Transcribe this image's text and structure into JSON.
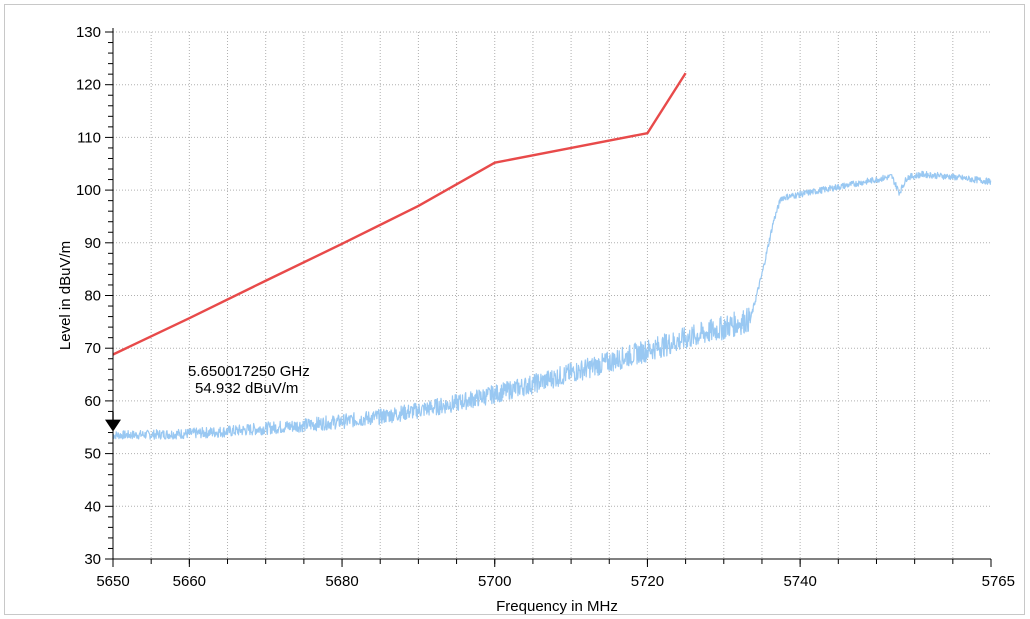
{
  "chart_data": {
    "type": "line",
    "title": "",
    "xlabel": "Frequency in MHz",
    "ylabel": "Level in dBuV/m",
    "xlim": [
      5650,
      5765
    ],
    "ylim": [
      30,
      130
    ],
    "x_ticks": [
      5650,
      5660,
      5680,
      5700,
      5720,
      5740,
      5765
    ],
    "y_ticks": [
      30,
      40,
      50,
      60,
      70,
      80,
      90,
      100,
      110,
      120,
      130
    ],
    "grid": true,
    "series": [
      {
        "color": "#e84a4a",
        "x": [
          5650,
          5660,
          5670,
          5680,
          5690,
          5700,
          5710,
          5720,
          5725
        ],
        "y": [
          68.8,
          75.7,
          82.8,
          89.8,
          97.0,
          105.2,
          108.0,
          110.8,
          122.2
        ]
      },
      {
        "color": "#99c8f2",
        "x": [
          5650,
          5655,
          5660,
          5665,
          5670,
          5675,
          5680,
          5685,
          5690,
          5695,
          5700,
          5705,
          5710,
          5715,
          5720,
          5725,
          5730,
          5733.5,
          5735,
          5736.5,
          5737.5,
          5740,
          5745,
          5750,
          5752,
          5753,
          5754,
          5756,
          5760,
          5765
        ],
        "y": [
          53.5,
          53.6,
          53.8,
          54.2,
          54.8,
          55.4,
          56.1,
          57.0,
          58.2,
          59.6,
          61.3,
          63.2,
          65.3,
          67.4,
          69.6,
          71.8,
          73.9,
          75.5,
          84.0,
          94.0,
          98.5,
          99.2,
          100.6,
          102.0,
          102.6,
          99.5,
          102.4,
          103.0,
          102.5,
          101.6
        ]
      }
    ],
    "marker": {
      "x": 5650,
      "y": 54.932,
      "frequency_label": "5.650017250 GHz",
      "level_label": "54.932 dBuV/m"
    }
  },
  "colors": {
    "background": "#ffffff",
    "grid": "#b0b0b0",
    "axis": "#000000",
    "limit_line": "#e84a4a",
    "trace": "#99c8f2"
  }
}
